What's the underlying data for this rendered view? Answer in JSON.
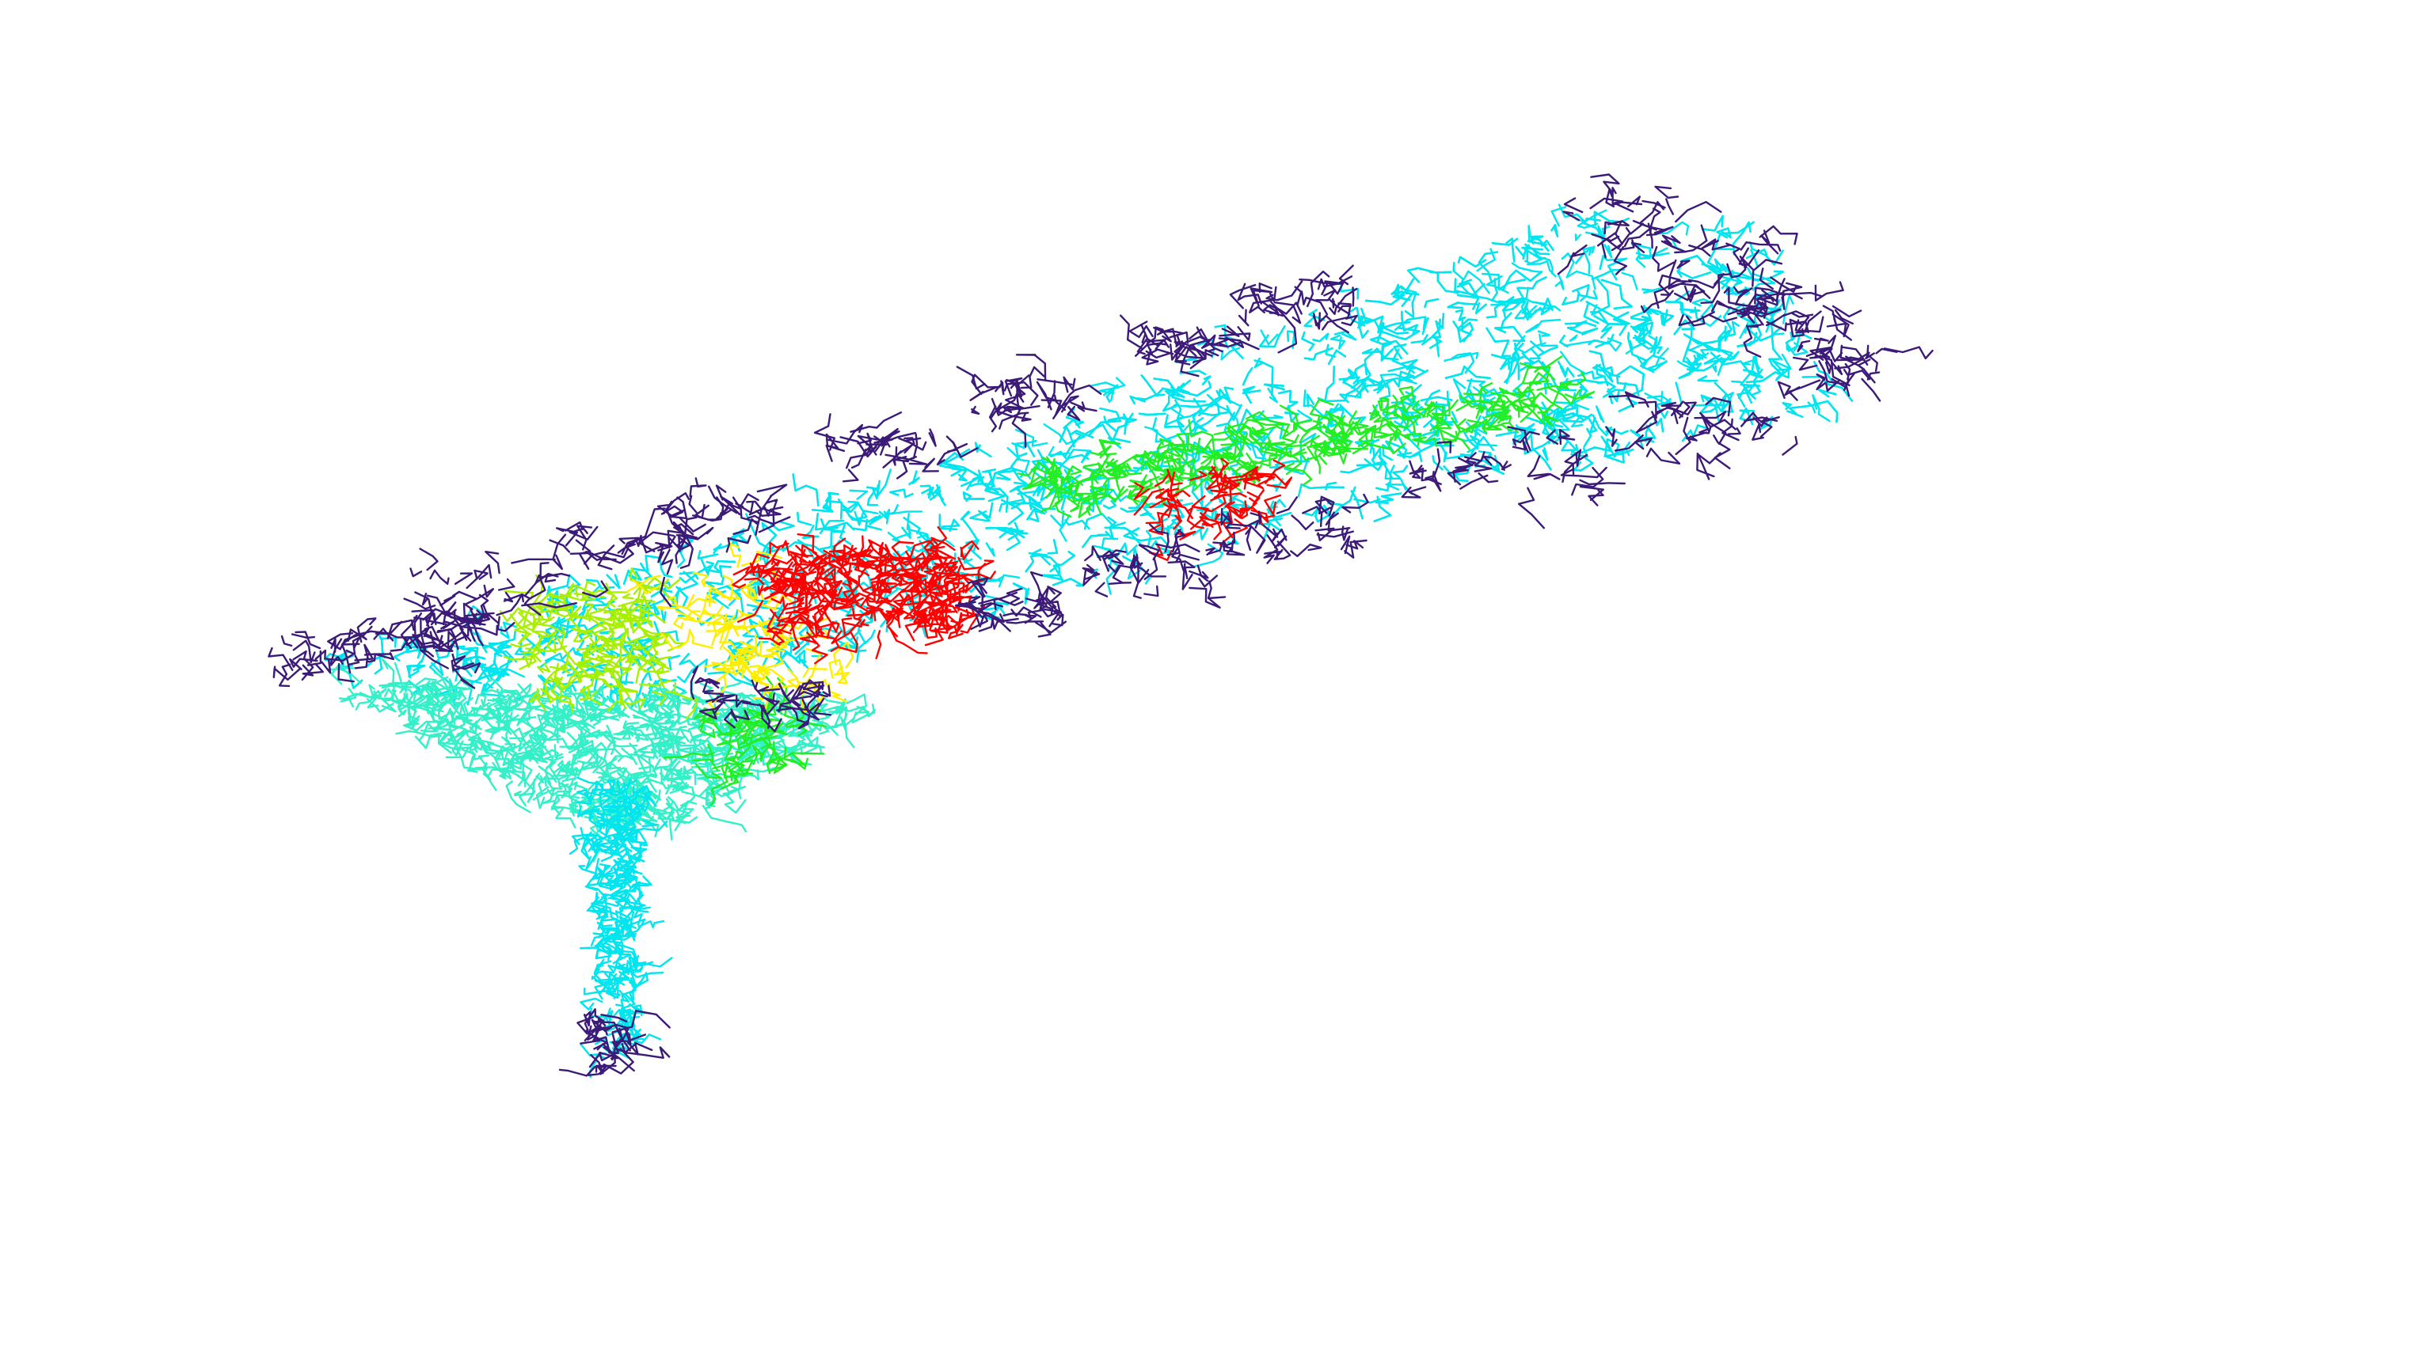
{
  "figure": {
    "description_visible_text": "",
    "background": "#ffffff"
  },
  "palette": {
    "indigo": "#3b1a78",
    "cyan": "#00e5ee",
    "aquamarine": "#33f0c8",
    "green": "#22ee22",
    "lime": "#a8f000",
    "yellow": "#ffee00",
    "orange": "#ffaa00",
    "red": "#ff0000"
  },
  "regions": [
    {
      "name": "funnel-stem",
      "color": "cyan"
    },
    {
      "name": "funnel-bowl",
      "color": "aquamarine"
    },
    {
      "name": "ribbon-body",
      "color": "cyan"
    },
    {
      "name": "ribbon-ridge",
      "color": "green"
    },
    {
      "name": "hotspot-left",
      "color": "red"
    },
    {
      "name": "hotspot-right",
      "color": "red"
    },
    {
      "name": "warm-band",
      "color": "yellow"
    },
    {
      "name": "lime-band",
      "color": "lime"
    },
    {
      "name": "edge-fringe",
      "color": "indigo"
    }
  ]
}
